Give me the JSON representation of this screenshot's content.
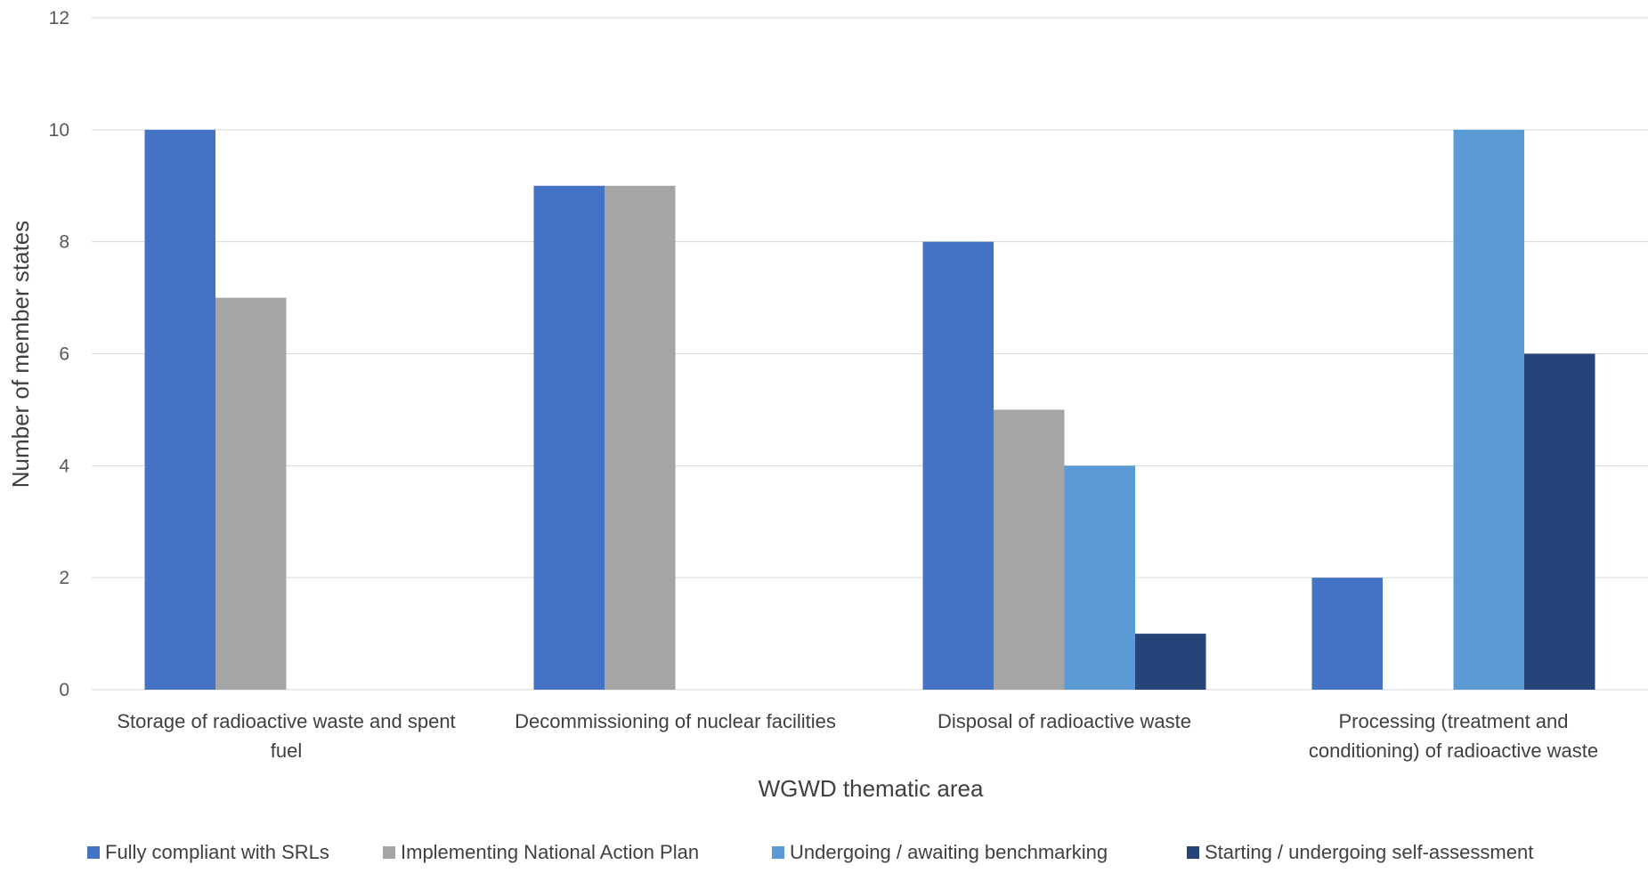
{
  "chart_data": {
    "type": "bar",
    "title": "",
    "xlabel": "WGWD thematic area",
    "ylabel": "Number of member states",
    "ylim": [
      0,
      12
    ],
    "yticks": [
      0,
      2,
      4,
      6,
      8,
      10,
      12
    ],
    "grid": true,
    "legend_position": "bottom",
    "categories": [
      [
        "Storage of radioactive waste and spent",
        "fuel"
      ],
      [
        "Decommissioning of nuclear facilities"
      ],
      [
        "Disposal of radioactive waste"
      ],
      [
        "Processing (treatment and",
        "conditioning) of radioactive waste"
      ]
    ],
    "series": [
      {
        "name": "Fully compliant with SRLs",
        "color": "#4472c4",
        "values": [
          10,
          9,
          8,
          2
        ]
      },
      {
        "name": "Implementing National Action Plan",
        "color": "#a5a5a5",
        "values": [
          7,
          9,
          5,
          0
        ]
      },
      {
        "name": "Undergoing / awaiting benchmarking",
        "color": "#5b9bd5",
        "values": [
          0,
          0,
          4,
          10
        ]
      },
      {
        "name": "Starting / undergoing self-assessment",
        "color": "#264478",
        "values": [
          0,
          0,
          1,
          6
        ]
      }
    ]
  }
}
